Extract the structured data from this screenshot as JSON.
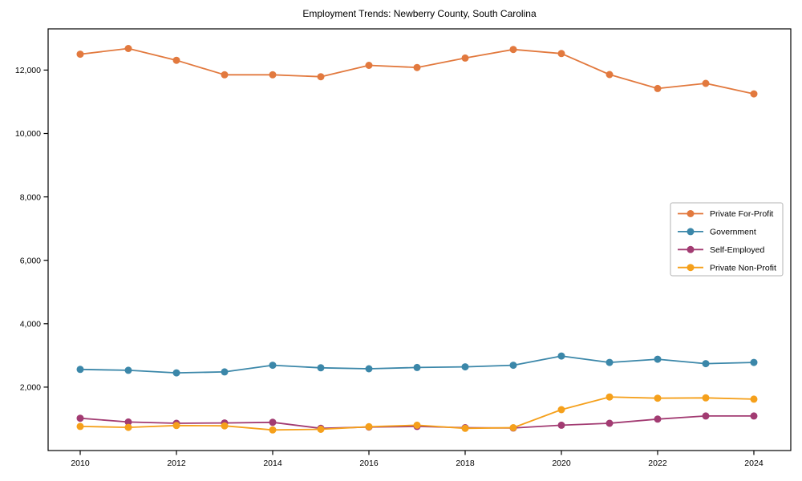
{
  "chart_data": {
    "type": "line",
    "title": "Employment Trends: Newberry County, South Carolina",
    "xlabel": "",
    "ylabel": "",
    "grid": false,
    "legend_position": "center-right",
    "x": [
      2010,
      2011,
      2012,
      2013,
      2014,
      2015,
      2016,
      2017,
      2018,
      2019,
      2020,
      2021,
      2022,
      2023,
      2024
    ],
    "x_ticks": [
      2010,
      2012,
      2014,
      2016,
      2018,
      2020,
      2022,
      2024
    ],
    "y_ticks": [
      2000,
      4000,
      6000,
      8000,
      10000,
      12000
    ],
    "xlim": [
      2009.333,
      2024.767
    ],
    "ylim": [
      0,
      13300
    ],
    "series": [
      {
        "name": "Private For-Profit",
        "color": "#e2793e",
        "values": [
          12500,
          12680,
          12310,
          11850,
          11850,
          11790,
          12150,
          12080,
          12380,
          12650,
          12520,
          11860,
          11420,
          11580,
          11250
        ]
      },
      {
        "name": "Government",
        "color": "#3b87a9",
        "values": [
          2560,
          2530,
          2450,
          2480,
          2690,
          2610,
          2580,
          2620,
          2640,
          2690,
          2980,
          2780,
          2880,
          2740,
          2780
        ]
      },
      {
        "name": "Self-Employed",
        "color": "#a23b72",
        "values": [
          1020,
          900,
          860,
          870,
          890,
          700,
          740,
          760,
          720,
          710,
          800,
          860,
          990,
          1090,
          1090
        ]
      },
      {
        "name": "Private Non-Profit",
        "color": "#f5a01b",
        "values": [
          760,
          730,
          790,
          780,
          650,
          670,
          750,
          800,
          700,
          720,
          1290,
          1690,
          1650,
          1660,
          1620
        ]
      }
    ],
    "axis_color": "#000000",
    "legend_border_color": "#b3b3b3"
  }
}
